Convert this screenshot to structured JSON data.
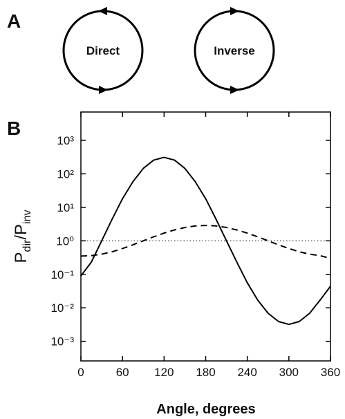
{
  "panels": {
    "a": "A",
    "b": "B"
  },
  "diagram": {
    "direct": "Direct",
    "inverse": "Inverse"
  },
  "chart_data": {
    "type": "line",
    "xlabel": "Angle, degrees",
    "ylabel": [
      "P",
      "dir",
      "/P",
      "inv"
    ],
    "x": [
      0,
      15,
      30,
      45,
      60,
      75,
      90,
      105,
      120,
      135,
      150,
      165,
      180,
      195,
      210,
      225,
      240,
      255,
      270,
      285,
      300,
      315,
      330,
      345,
      360
    ],
    "series": [
      {
        "color": "#000000",
        "dash": false,
        "values": [
          0.09,
          0.23,
          1,
          4.4,
          18,
          58,
          145,
          257,
          310,
          257,
          145,
          58,
          18,
          4.4,
          1,
          0.23,
          0.056,
          0.017,
          0.0069,
          0.0039,
          0.0032,
          0.0039,
          0.0069,
          0.017,
          0.044
        ]
      },
      {
        "color": "#000000",
        "dash": true,
        "values": [
          0.35,
          0.36,
          0.4,
          0.47,
          0.59,
          0.76,
          1,
          1.32,
          1.7,
          2.11,
          2.5,
          2.78,
          2.88,
          2.78,
          2.5,
          2.11,
          1.7,
          1.32,
          1,
          0.76,
          0.59,
          0.47,
          0.4,
          0.36,
          0.3
        ]
      }
    ],
    "reference_line": 1,
    "log_y": true,
    "xlim": [
      0,
      360
    ],
    "xticks": [
      0,
      60,
      120,
      180,
      240,
      300,
      360
    ],
    "ylim": [
      0.00026,
      7000
    ],
    "yticks": [
      {
        "value": 1000,
        "label": "10³"
      },
      {
        "value": 100,
        "label": "10²"
      },
      {
        "value": 10,
        "label": "10¹"
      },
      {
        "value": 1,
        "label": "10⁰"
      },
      {
        "value": 0.1,
        "label": "10⁻¹"
      },
      {
        "value": 0.01,
        "label": "10⁻²"
      },
      {
        "value": 0.001,
        "label": "10⁻³"
      }
    ]
  }
}
